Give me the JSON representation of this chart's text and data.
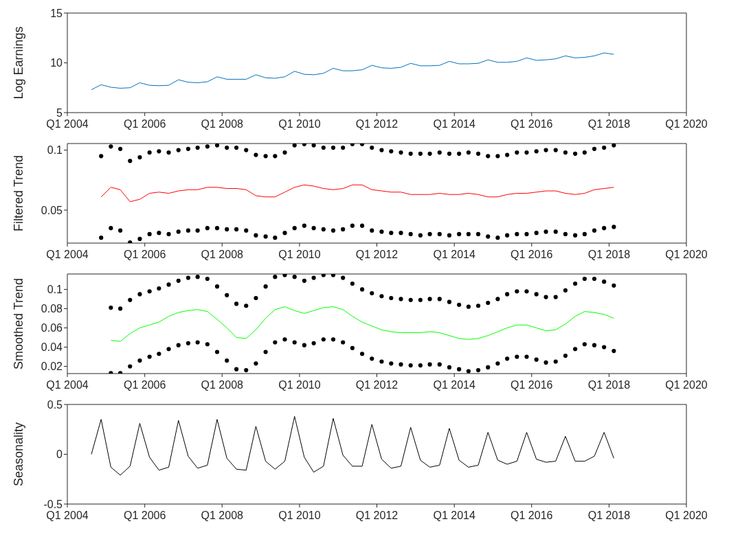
{
  "chart_data": [
    {
      "type": "line",
      "ylabel": "Log Earnings",
      "x": [
        "2004-08-15",
        "2004-11-15",
        "2005-02-15",
        "2005-05-15",
        "2005-08-15",
        "2005-11-15",
        "2006-02-15",
        "2006-05-15",
        "2006-08-15",
        "2006-11-15",
        "2007-02-15",
        "2007-05-15",
        "2007-08-15",
        "2007-11-15",
        "2008-02-15",
        "2008-05-15",
        "2008-08-15",
        "2008-11-15",
        "2009-02-15",
        "2009-05-15",
        "2009-08-15",
        "2009-11-15",
        "2010-02-15",
        "2010-05-15",
        "2010-08-15",
        "2010-11-15",
        "2011-02-15",
        "2011-05-15",
        "2011-08-15",
        "2011-11-15",
        "2012-02-15",
        "2012-05-15",
        "2012-08-15",
        "2012-11-15",
        "2013-02-15",
        "2013-05-15",
        "2013-08-15",
        "2013-11-15",
        "2014-02-15",
        "2014-05-15",
        "2014-08-15",
        "2014-11-15",
        "2015-02-15",
        "2015-05-15",
        "2015-08-15",
        "2015-11-15",
        "2016-02-15",
        "2016-05-15",
        "2016-08-15",
        "2016-11-15",
        "2017-02-15",
        "2017-05-15",
        "2017-08-15",
        "2017-11-15",
        "2018-02-15"
      ],
      "series": [
        {
          "color": "#0072bd",
          "values": [
            7.3,
            7.8,
            7.55,
            7.45,
            7.5,
            8.0,
            7.75,
            7.7,
            7.75,
            8.3,
            8.05,
            8.0,
            8.1,
            8.6,
            8.35,
            8.35,
            8.35,
            8.8,
            8.5,
            8.45,
            8.6,
            9.15,
            8.85,
            8.8,
            8.95,
            9.45,
            9.2,
            9.2,
            9.3,
            9.75,
            9.5,
            9.45,
            9.55,
            9.95,
            9.7,
            9.7,
            9.75,
            10.15,
            9.9,
            9.9,
            9.95,
            10.3,
            10.05,
            10.05,
            10.15,
            10.5,
            10.25,
            10.3,
            10.4,
            10.7,
            10.5,
            10.55,
            10.7,
            11.0,
            10.85
          ]
        }
      ],
      "xlim": [
        "2004-01-01",
        "2020-01-01"
      ],
      "xticks": [
        {
          "value": "2004-01-01",
          "label": "Q1 2004"
        },
        {
          "value": "2006-01-01",
          "label": "Q1 2006"
        },
        {
          "value": "2008-01-01",
          "label": "Q1 2008"
        },
        {
          "value": "2010-01-01",
          "label": "Q1 2010"
        },
        {
          "value": "2012-01-01",
          "label": "Q1 2012"
        },
        {
          "value": "2014-01-01",
          "label": "Q1 2014"
        },
        {
          "value": "2016-01-01",
          "label": "Q1 2016"
        },
        {
          "value": "2018-01-01",
          "label": "Q1 2018"
        },
        {
          "value": "2020-01-01",
          "label": "Q1 2020"
        }
      ],
      "ylim": [
        5,
        15
      ],
      "yticks": [
        5,
        10,
        15
      ]
    },
    {
      "type": "line",
      "ylabel": "Filtered Trend",
      "x": [
        "2004-11-15",
        "2005-02-15",
        "2005-05-15",
        "2005-08-15",
        "2005-11-15",
        "2006-02-15",
        "2006-05-15",
        "2006-08-15",
        "2006-11-15",
        "2007-02-15",
        "2007-05-15",
        "2007-08-15",
        "2007-11-15",
        "2008-02-15",
        "2008-05-15",
        "2008-08-15",
        "2008-11-15",
        "2009-02-15",
        "2009-05-15",
        "2009-08-15",
        "2009-11-15",
        "2010-02-15",
        "2010-05-15",
        "2010-08-15",
        "2010-11-15",
        "2011-02-15",
        "2011-05-15",
        "2011-08-15",
        "2011-11-15",
        "2012-02-15",
        "2012-05-15",
        "2012-08-15",
        "2012-11-15",
        "2013-02-15",
        "2013-05-15",
        "2013-08-15",
        "2013-11-15",
        "2014-02-15",
        "2014-05-15",
        "2014-08-15",
        "2014-11-15",
        "2015-02-15",
        "2015-05-15",
        "2015-08-15",
        "2015-11-15",
        "2016-02-15",
        "2016-05-15",
        "2016-08-15",
        "2016-11-15",
        "2017-02-15",
        "2017-05-15",
        "2017-08-15",
        "2017-11-15",
        "2018-02-15"
      ],
      "series": [
        {
          "color": "#ff0000",
          "values": [
            0.061,
            0.069,
            0.067,
            0.057,
            0.059,
            0.064,
            0.065,
            0.064,
            0.066,
            0.067,
            0.067,
            0.069,
            0.069,
            0.068,
            0.068,
            0.067,
            0.062,
            0.061,
            0.061,
            0.065,
            0.069,
            0.071,
            0.07,
            0.068,
            0.067,
            0.068,
            0.071,
            0.071,
            0.067,
            0.066,
            0.065,
            0.065,
            0.063,
            0.063,
            0.063,
            0.064,
            0.063,
            0.063,
            0.064,
            0.063,
            0.061,
            0.061,
            0.063,
            0.064,
            0.064,
            0.065,
            0.066,
            0.066,
            0.064,
            0.063,
            0.064,
            0.067,
            0.068,
            0.069
          ]
        },
        {
          "type": "scatter",
          "color": "#000000",
          "values": [
            0.095,
            0.103,
            0.101,
            0.091,
            0.094,
            0.098,
            0.099,
            0.098,
            0.1,
            0.101,
            0.102,
            0.103,
            0.104,
            0.102,
            0.102,
            0.1,
            0.096,
            0.095,
            0.095,
            0.098,
            0.104,
            0.105,
            0.104,
            0.102,
            0.102,
            0.102,
            0.105,
            0.105,
            0.102,
            0.1,
            0.099,
            0.098,
            0.097,
            0.097,
            0.097,
            0.098,
            0.097,
            0.097,
            0.098,
            0.097,
            0.095,
            0.095,
            0.096,
            0.098,
            0.098,
            0.099,
            0.1,
            0.1,
            0.098,
            0.097,
            0.098,
            0.101,
            0.102,
            0.104
          ]
        },
        {
          "type": "scatter",
          "color": "#000000",
          "values": [
            0.027,
            0.035,
            0.033,
            0.023,
            0.026,
            0.03,
            0.031,
            0.03,
            0.032,
            0.033,
            0.033,
            0.035,
            0.035,
            0.034,
            0.034,
            0.033,
            0.029,
            0.028,
            0.027,
            0.031,
            0.035,
            0.037,
            0.035,
            0.034,
            0.033,
            0.034,
            0.037,
            0.037,
            0.033,
            0.032,
            0.031,
            0.031,
            0.03,
            0.029,
            0.03,
            0.03,
            0.029,
            0.03,
            0.03,
            0.03,
            0.028,
            0.027,
            0.029,
            0.03,
            0.03,
            0.031,
            0.032,
            0.032,
            0.03,
            0.029,
            0.03,
            0.033,
            0.035,
            0.036
          ]
        }
      ],
      "xlim": [
        "2004-01-01",
        "2020-01-01"
      ],
      "xticks": [
        {
          "value": "2004-01-01",
          "label": "Q1 2004"
        },
        {
          "value": "2006-01-01",
          "label": "Q1 2006"
        },
        {
          "value": "2008-01-01",
          "label": "Q1 2008"
        },
        {
          "value": "2010-01-01",
          "label": "Q1 2010"
        },
        {
          "value": "2012-01-01",
          "label": "Q1 2012"
        },
        {
          "value": "2014-01-01",
          "label": "Q1 2014"
        },
        {
          "value": "2016-01-01",
          "label": "Q1 2016"
        },
        {
          "value": "2018-01-01",
          "label": "Q1 2018"
        },
        {
          "value": "2020-01-01",
          "label": "Q1 2020"
        }
      ],
      "ylim": [
        0.0225,
        0.1055
      ],
      "yticks": [
        0.05,
        0.1
      ]
    },
    {
      "type": "line",
      "ylabel": "Smoothed Trend",
      "x": [
        "2005-02-15",
        "2005-05-15",
        "2005-08-15",
        "2005-11-15",
        "2006-02-15",
        "2006-05-15",
        "2006-08-15",
        "2006-11-15",
        "2007-02-15",
        "2007-05-15",
        "2007-08-15",
        "2007-11-15",
        "2008-02-15",
        "2008-05-15",
        "2008-08-15",
        "2008-11-15",
        "2009-02-15",
        "2009-05-15",
        "2009-08-15",
        "2009-11-15",
        "2010-02-15",
        "2010-05-15",
        "2010-08-15",
        "2010-11-15",
        "2011-02-15",
        "2011-05-15",
        "2011-08-15",
        "2011-11-15",
        "2012-02-15",
        "2012-05-15",
        "2012-08-15",
        "2012-11-15",
        "2013-02-15",
        "2013-05-15",
        "2013-08-15",
        "2013-11-15",
        "2014-02-15",
        "2014-05-15",
        "2014-08-15",
        "2014-11-15",
        "2015-02-15",
        "2015-05-15",
        "2015-08-15",
        "2015-11-15",
        "2016-02-15",
        "2016-05-15",
        "2016-08-15",
        "2016-11-15",
        "2017-02-15",
        "2017-05-15",
        "2017-08-15",
        "2017-11-15",
        "2018-02-15"
      ],
      "series": [
        {
          "color": "#00ff00",
          "values": [
            0.047,
            0.046,
            0.054,
            0.06,
            0.063,
            0.066,
            0.072,
            0.076,
            0.078,
            0.079,
            0.077,
            0.069,
            0.06,
            0.05,
            0.049,
            0.058,
            0.07,
            0.079,
            0.082,
            0.078,
            0.075,
            0.078,
            0.081,
            0.082,
            0.079,
            0.072,
            0.066,
            0.062,
            0.058,
            0.056,
            0.055,
            0.055,
            0.055,
            0.056,
            0.055,
            0.052,
            0.049,
            0.048,
            0.049,
            0.052,
            0.056,
            0.06,
            0.063,
            0.063,
            0.06,
            0.057,
            0.058,
            0.064,
            0.072,
            0.077,
            0.076,
            0.074,
            0.07
          ]
        },
        {
          "type": "scatter",
          "color": "#000000",
          "values": [
            0.081,
            0.08,
            0.089,
            0.095,
            0.098,
            0.101,
            0.105,
            0.109,
            0.112,
            0.113,
            0.111,
            0.103,
            0.094,
            0.085,
            0.083,
            0.091,
            0.103,
            0.113,
            0.115,
            0.113,
            0.109,
            0.112,
            0.115,
            0.115,
            0.112,
            0.106,
            0.1,
            0.096,
            0.093,
            0.091,
            0.09,
            0.089,
            0.089,
            0.09,
            0.09,
            0.087,
            0.084,
            0.082,
            0.083,
            0.086,
            0.09,
            0.095,
            0.098,
            0.098,
            0.095,
            0.092,
            0.092,
            0.099,
            0.106,
            0.111,
            0.111,
            0.108,
            0.104
          ]
        },
        {
          "type": "scatter",
          "color": "#000000",
          "values": [
            0.013,
            0.013,
            0.02,
            0.026,
            0.03,
            0.033,
            0.038,
            0.042,
            0.044,
            0.045,
            0.043,
            0.035,
            0.026,
            0.017,
            0.016,
            0.023,
            0.035,
            0.045,
            0.048,
            0.045,
            0.042,
            0.044,
            0.048,
            0.048,
            0.045,
            0.039,
            0.033,
            0.028,
            0.025,
            0.023,
            0.022,
            0.021,
            0.021,
            0.022,
            0.022,
            0.019,
            0.017,
            0.015,
            0.016,
            0.019,
            0.023,
            0.028,
            0.03,
            0.03,
            0.027,
            0.024,
            0.025,
            0.031,
            0.038,
            0.043,
            0.042,
            0.04,
            0.036
          ]
        }
      ],
      "xlim": [
        "2004-01-01",
        "2020-01-01"
      ],
      "xticks": [
        {
          "value": "2004-01-01",
          "label": "Q1 2004"
        },
        {
          "value": "2006-01-01",
          "label": "Q1 2006"
        },
        {
          "value": "2008-01-01",
          "label": "Q1 2008"
        },
        {
          "value": "2010-01-01",
          "label": "Q1 2010"
        },
        {
          "value": "2012-01-01",
          "label": "Q1 2012"
        },
        {
          "value": "2014-01-01",
          "label": "Q1 2014"
        },
        {
          "value": "2016-01-01",
          "label": "Q1 2016"
        },
        {
          "value": "2018-01-01",
          "label": "Q1 2018"
        },
        {
          "value": "2020-01-01",
          "label": "Q1 2020"
        }
      ],
      "ylim": [
        0.0125,
        0.116
      ],
      "yticks": [
        0.02,
        0.04,
        0.06,
        0.08,
        0.1
      ]
    },
    {
      "type": "line",
      "ylabel": "Seasonality",
      "x": [
        "2004-08-15",
        "2004-11-15",
        "2005-02-15",
        "2005-05-15",
        "2005-08-15",
        "2005-11-15",
        "2006-02-15",
        "2006-05-15",
        "2006-08-15",
        "2006-11-15",
        "2007-02-15",
        "2007-05-15",
        "2007-08-15",
        "2007-11-15",
        "2008-02-15",
        "2008-05-15",
        "2008-08-15",
        "2008-11-15",
        "2009-02-15",
        "2009-05-15",
        "2009-08-15",
        "2009-11-15",
        "2010-02-15",
        "2010-05-15",
        "2010-08-15",
        "2010-11-15",
        "2011-02-15",
        "2011-05-15",
        "2011-08-15",
        "2011-11-15",
        "2012-02-15",
        "2012-05-15",
        "2012-08-15",
        "2012-11-15",
        "2013-02-15",
        "2013-05-15",
        "2013-08-15",
        "2013-11-15",
        "2014-02-15",
        "2014-05-15",
        "2014-08-15",
        "2014-11-15",
        "2015-02-15",
        "2015-05-15",
        "2015-08-15",
        "2015-11-15",
        "2016-02-15",
        "2016-05-15",
        "2016-08-15",
        "2016-11-15",
        "2017-02-15",
        "2017-05-15",
        "2017-08-15",
        "2017-11-15",
        "2018-02-15"
      ],
      "series": [
        {
          "color": "#000000",
          "values": [
            0,
            0.35,
            -0.13,
            -0.21,
            -0.12,
            0.31,
            -0.03,
            -0.16,
            -0.13,
            0.34,
            -0.02,
            -0.14,
            -0.11,
            0.35,
            -0.04,
            -0.15,
            -0.16,
            0.28,
            -0.07,
            -0.15,
            -0.07,
            0.38,
            -0.03,
            -0.18,
            -0.12,
            0.36,
            -0.01,
            -0.12,
            -0.12,
            0.3,
            -0.05,
            -0.14,
            -0.12,
            0.27,
            -0.06,
            -0.13,
            -0.11,
            0.26,
            -0.06,
            -0.13,
            -0.11,
            0.22,
            -0.06,
            -0.1,
            -0.07,
            0.22,
            -0.05,
            -0.08,
            -0.07,
            0.18,
            -0.07,
            -0.07,
            -0.02,
            0.22,
            -0.04
          ]
        }
      ],
      "xlim": [
        "2004-01-01",
        "2020-01-01"
      ],
      "xticks": [
        {
          "value": "2004-01-01",
          "label": "Q1 2004"
        },
        {
          "value": "2006-01-01",
          "label": "Q1 2006"
        },
        {
          "value": "2008-01-01",
          "label": "Q1 2008"
        },
        {
          "value": "2010-01-01",
          "label": "Q1 2010"
        },
        {
          "value": "2012-01-01",
          "label": "Q1 2012"
        },
        {
          "value": "2014-01-01",
          "label": "Q1 2014"
        },
        {
          "value": "2016-01-01",
          "label": "Q1 2016"
        },
        {
          "value": "2018-01-01",
          "label": "Q1 2018"
        },
        {
          "value": "2020-01-01",
          "label": "Q1 2020"
        }
      ],
      "ylim": [
        -0.5,
        0.5
      ],
      "yticks": [
        -0.5,
        0,
        0.5
      ]
    }
  ]
}
